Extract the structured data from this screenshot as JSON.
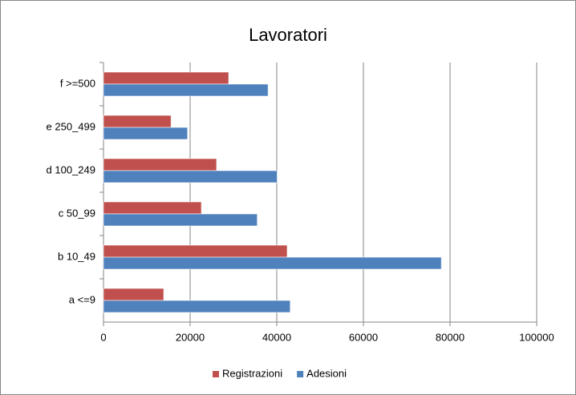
{
  "chart_data": {
    "type": "bar",
    "orientation": "horizontal",
    "title": "Lavoratori",
    "categories": [
      "a <=9",
      "b 10_49",
      "c 50_99",
      "d 100_249",
      "e 250_499",
      "f >=500"
    ],
    "series": [
      {
        "name": "Registrazioni",
        "color": "#c0504d",
        "values": [
          13900,
          42400,
          22600,
          26100,
          15600,
          28900
        ]
      },
      {
        "name": "Adesioni",
        "color": "#4f81bd",
        "values": [
          43100,
          78000,
          35500,
          40100,
          19400,
          38000
        ]
      }
    ],
    "xlim": [
      0,
      100000
    ],
    "xticks": [
      0,
      20000,
      40000,
      60000,
      80000,
      100000
    ],
    "grid": true,
    "legend": "bottom"
  }
}
